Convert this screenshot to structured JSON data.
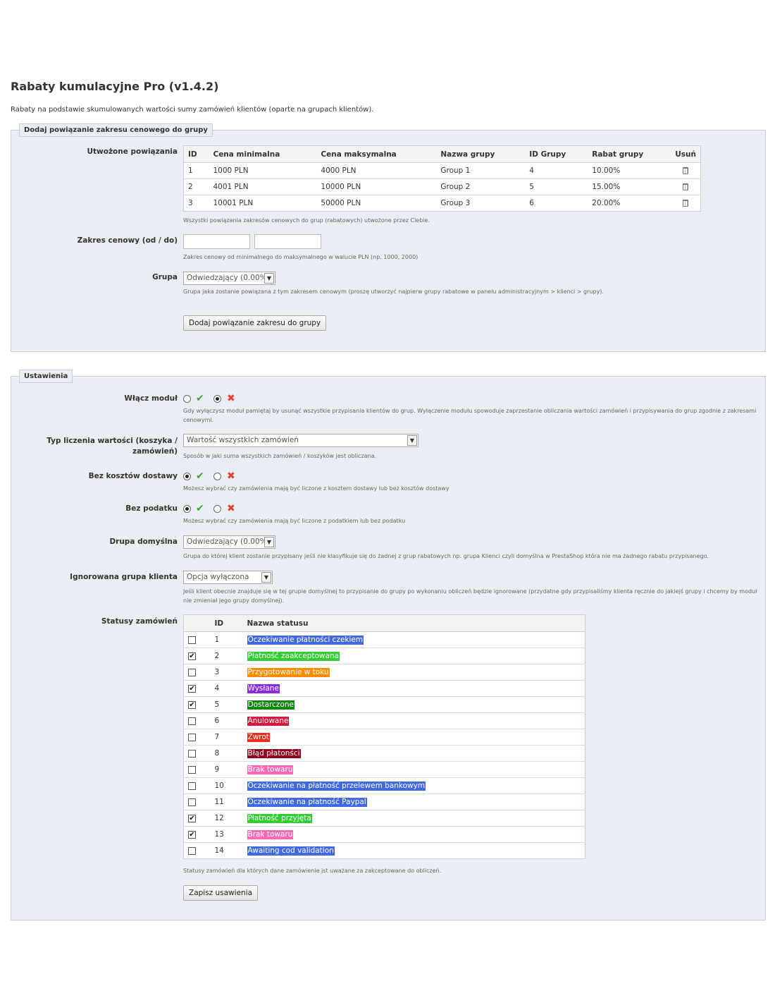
{
  "page": {
    "title": "Rabaty kumulacyjne Pro (v1.4.2)",
    "description": "Rabaty na podstawie skumulowanych wartości sumy zamówień klientów (oparte na grupach klientów)."
  },
  "group_panel": {
    "legend": "Dodaj powiązanie zakresu cenowego do grupy",
    "created_label": "Utwożone powiązania",
    "columns": [
      "ID",
      "Cena minimalna",
      "Cena maksymalna",
      "Nazwa grupy",
      "ID Grupy",
      "Rabat grupy",
      "Usuń"
    ],
    "rows": [
      {
        "id": "1",
        "min": "1000 PLN",
        "max": "4000 PLN",
        "name": "Group 1",
        "group_id": "4",
        "discount": "10.00%"
      },
      {
        "id": "2",
        "min": "4001 PLN",
        "max": "10000 PLN",
        "name": "Group 2",
        "group_id": "5",
        "discount": "15.00%"
      },
      {
        "id": "3",
        "min": "10001 PLN",
        "max": "50000 PLN",
        "name": "Group 3",
        "group_id": "6",
        "discount": "20.00%"
      }
    ],
    "created_hint": "Wszystki powiązania zakresów cenowych do grup (rabatowych) utwożone przez Ciebie.",
    "range_label": "Zakres cenowy (od / do)",
    "range_from_value": "",
    "range_to_value": "",
    "range_hint": "Zakres cenowy od minimalnego do maksymalnego w walucie PLN (np. 1000, 2000)",
    "group_label": "Grupa",
    "group_selected": "Odwiedzający (0.00%)",
    "group_hint": "Grupa jaka zostanie powiązana z tym zakresem cenowym (proszę utworzyć najpierw grupy rabatowe w panelu administracyjnym > klienci > grupy).",
    "add_button": "Dodaj powiązanie zakresu do grupy"
  },
  "settings_panel": {
    "legend": "Ustawienia",
    "enable_label": "Włącz moduł",
    "enable_value": "no",
    "enable_hint": "Gdy wyłączysz moduł pamiętaj by usunąć wszystkie przypisania klientów do grup. Wyłączenie modułu spowoduje zaprzestanie obliczania wartości zamówień i przypisywania do grup zgodnie z zakresami cenowymi.",
    "calc_label": "Typ liczenia wartości (koszyka / zamówień)",
    "calc_selected": "Wartość wszystkich zamówień",
    "calc_hint": "Sposób w jaki suma wszystkich zamówień / koszyków jest obliczana.",
    "shipping_label": "Bez kosztów dostawy",
    "shipping_value": "yes",
    "shipping_hint": "Możesz wybrać czy zamówienia mają być liczone z kosztem dostawy lub bez kosztów dostawy",
    "tax_label": "Bez podatku",
    "tax_value": "yes",
    "tax_hint": "Możesz wybrać czy zamówienia mają być liczone z podatkiem lub bez podatku",
    "default_group_label": "Drupa domyślna",
    "default_group_selected": "Odwiedzający (0.00%)",
    "default_group_hint": "Grupa do której klient zostanie przypisany jeśli nie klasyfikuje się do żadnej z grup rabatowych np. grupa Klienci czyli domyślna w PrestaShop która nie ma żadnego rabatu przypisanego.",
    "ignored_label": "Ignorowana grupa klienta",
    "ignored_selected": "Opcja wyłączona",
    "ignored_hint": "Jeśli klient obecnie znajduje się w tej grupie domyślnej to przypisanie do grupy po wykonaniu obliczeń będzie ignorowane (przydatne gdy przypisaliśmy klienta ręcznie do jakiejś grupy i chcemy by moduł nie zmieniał jego grupy domyślnej).",
    "statuses_label": "Statusy zamówień",
    "status_columns": [
      "ID",
      "Nazwa statusu"
    ],
    "statuses": [
      {
        "id": "1",
        "name": "Oczekiwanie płatności czekiem",
        "color": "#4169e1",
        "checked": false
      },
      {
        "id": "2",
        "name": "Płatność zaakceptowana",
        "color": "#32cd32",
        "checked": true
      },
      {
        "id": "3",
        "name": "Przygotowanie w toku",
        "color": "#ff8c00",
        "checked": false
      },
      {
        "id": "4",
        "name": "Wysłane",
        "color": "#8a2be2",
        "checked": true
      },
      {
        "id": "5",
        "name": "Dostarczone",
        "color": "#108510",
        "checked": true
      },
      {
        "id": "6",
        "name": "Anulowane",
        "color": "#dc143c",
        "checked": false
      },
      {
        "id": "7",
        "name": "Zwrot",
        "color": "#ec2e15",
        "checked": false
      },
      {
        "id": "8",
        "name": "Błąd płatonści",
        "color": "#8f0621",
        "checked": false
      },
      {
        "id": "9",
        "name": "Brak towaru",
        "color": "#ff69b4",
        "checked": false
      },
      {
        "id": "10",
        "name": "Oczekiwanie na płatność przelewem bankowym",
        "color": "#4169e1",
        "checked": false
      },
      {
        "id": "11",
        "name": "Oczekiwanie na płatność Paypal",
        "color": "#4169e1",
        "checked": false
      },
      {
        "id": "12",
        "name": "Płatność przyjęta",
        "color": "#32cd32",
        "checked": true
      },
      {
        "id": "13",
        "name": "Brak towaru",
        "color": "#ff69b4",
        "checked": true
      },
      {
        "id": "14",
        "name": "Awaiting cod validation",
        "color": "#4169e1",
        "checked": false
      }
    ],
    "statuses_hint": "Statusy zamówień dla których dane zamówienie jst uważane za zakceptowane do obliczeń.",
    "save_button": "Zapisz usawienia"
  },
  "icons": {
    "yes": "check-icon",
    "no": "cross-icon",
    "delete": "trash-icon",
    "dropdown": "chevron-down-icon"
  }
}
